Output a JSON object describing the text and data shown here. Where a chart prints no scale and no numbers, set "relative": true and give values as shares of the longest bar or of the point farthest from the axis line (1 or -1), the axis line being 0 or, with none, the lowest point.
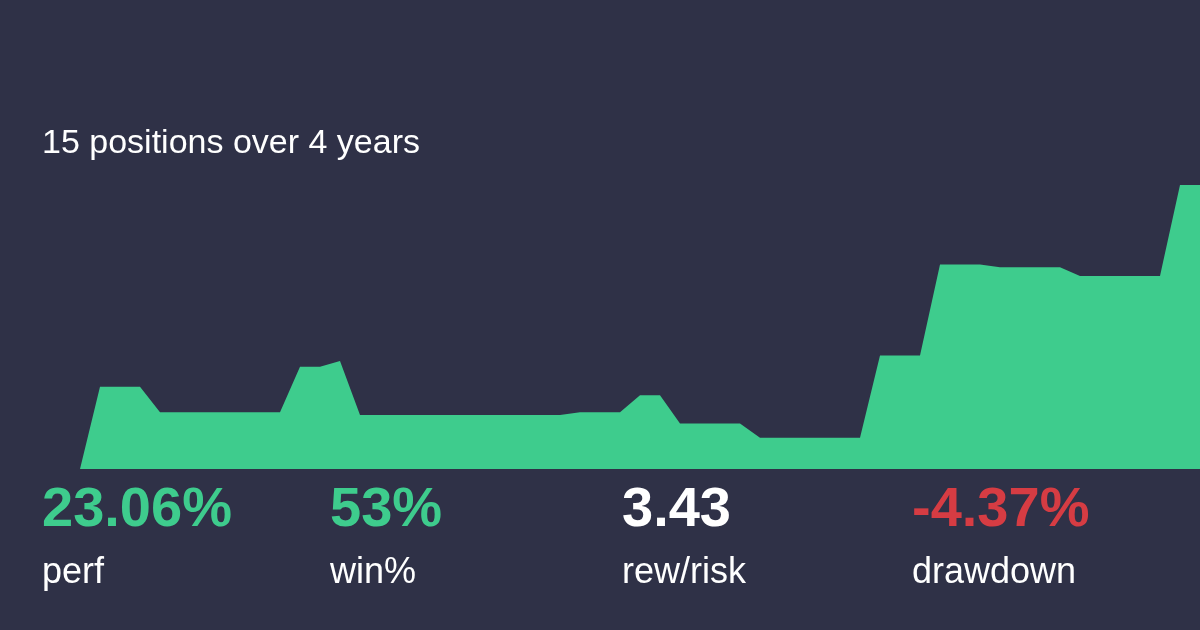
{
  "chart_data": {
    "type": "area",
    "subtitle": "15 positions over 4 years",
    "relative": true,
    "color": "#3ecc8d",
    "categories": [
      null,
      null,
      null,
      null,
      null,
      null,
      null,
      null,
      null,
      null,
      null,
      null,
      null,
      null,
      null,
      null,
      null,
      null,
      null,
      null,
      null,
      null,
      null,
      null,
      null,
      null,
      null,
      null,
      null,
      null,
      null,
      null,
      null,
      null,
      null,
      null,
      null,
      null,
      null,
      null,
      null,
      null,
      null,
      null,
      null,
      null,
      null,
      null,
      null,
      null,
      null,
      null,
      null,
      null,
      null,
      null,
      null,
      null,
      null,
      null,
      null
    ],
    "values": [
      0,
      0,
      0,
      0,
      0,
      0.29,
      0.29,
      0.29,
      0.2,
      0.2,
      0.2,
      0.2,
      0.2,
      0.2,
      0.2,
      0.36,
      0.36,
      0.38,
      0.19,
      0.19,
      0.19,
      0.19,
      0.19,
      0.19,
      0.19,
      0.19,
      0.19,
      0.19,
      0.19,
      0.2,
      0.2,
      0.2,
      0.26,
      0.26,
      0.16,
      0.16,
      0.16,
      0.16,
      0.11,
      0.11,
      0.11,
      0.11,
      0.11,
      0.11,
      0.4,
      0.4,
      0.4,
      0.72,
      0.72,
      0.72,
      0.71,
      0.71,
      0.71,
      0.71,
      0.68,
      0.68,
      0.68,
      0.68,
      0.68,
      1,
      1
    ],
    "annotations": [
      "23.06%",
      "perf",
      "53%",
      "win%",
      "3.43",
      "rew/risk",
      "-4.37%",
      "drawdown"
    ]
  }
}
